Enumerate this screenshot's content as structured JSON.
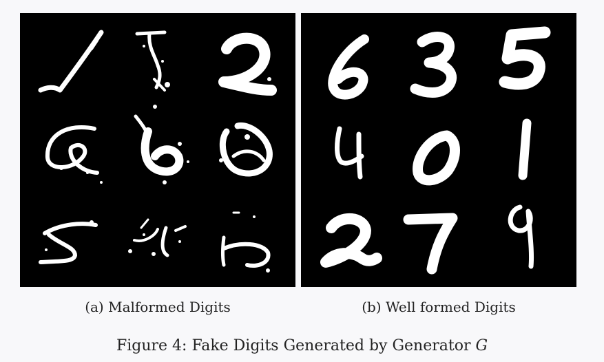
{
  "subfigures": [
    {
      "caption": "(a) Malformed Digits"
    },
    {
      "caption": "(b) Well formed Digits"
    }
  ],
  "figure": {
    "caption_prefix": "Figure 4: Fake Digits Generated by Generator",
    "caption_symbol": "G"
  }
}
